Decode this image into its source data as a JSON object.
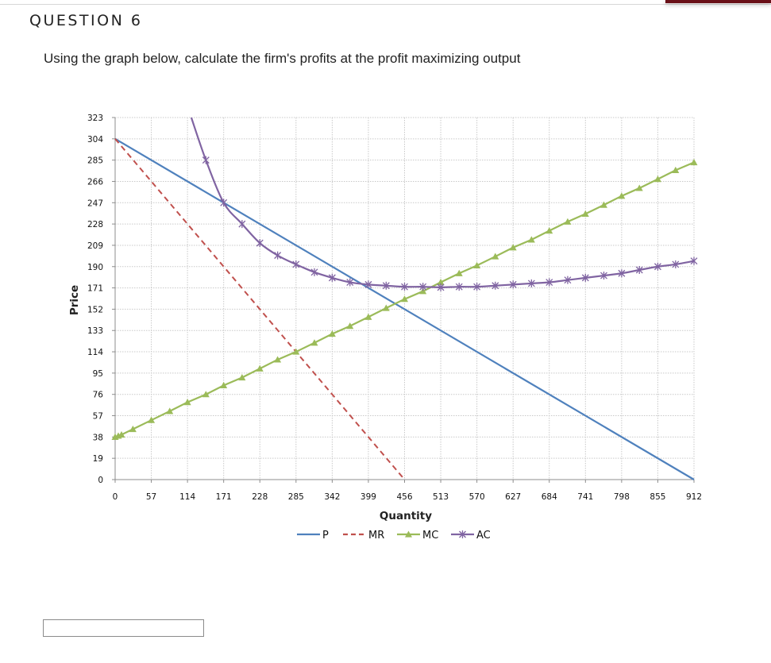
{
  "question": {
    "title": "QUESTION 6",
    "prompt": "Using the graph below, calculate the firm's profits at the profit maximizing output"
  },
  "answer": {
    "value": "",
    "placeholder": ""
  },
  "chart_data": {
    "type": "line",
    "title": "",
    "xlabel": "Quantity",
    "ylabel": "Price",
    "xlim": [
      0,
      912
    ],
    "ylim": [
      0,
      323
    ],
    "x_ticks": [
      "0",
      "57",
      "114",
      "171",
      "228",
      "285",
      "342",
      "399",
      "456",
      "513",
      "570",
      "627",
      "684",
      "741",
      "798",
      "855",
      "912"
    ],
    "y_ticks": [
      "0",
      "19",
      "38",
      "57",
      "76",
      "95",
      "114",
      "133",
      "152",
      "171",
      "190",
      "209",
      "228",
      "247",
      "266",
      "285",
      "304",
      "323"
    ],
    "grid": true,
    "legend_position": "bottom",
    "series": [
      {
        "name": "P",
        "color": "#4f81bd",
        "marker": "none",
        "dash": "solid",
        "points": [
          [
            0,
            304
          ],
          [
            912,
            0
          ]
        ]
      },
      {
        "name": "MR",
        "color": "#c0504d",
        "marker": "none",
        "dash": "dashed",
        "points": [
          [
            0,
            304
          ],
          [
            456,
            0
          ]
        ]
      },
      {
        "name": "MC",
        "color": "#9bbb59",
        "marker": "triangle",
        "dash": "solid",
        "points": [
          [
            0,
            38
          ],
          [
            5,
            39
          ],
          [
            10,
            40
          ],
          [
            28,
            45
          ],
          [
            57,
            53
          ],
          [
            86,
            61
          ],
          [
            114,
            69
          ],
          [
            143,
            76
          ],
          [
            171,
            84
          ],
          [
            200,
            91
          ],
          [
            228,
            99
          ],
          [
            256,
            107
          ],
          [
            285,
            114
          ],
          [
            314,
            122
          ],
          [
            342,
            130
          ],
          [
            370,
            137
          ],
          [
            399,
            145
          ],
          [
            427,
            153
          ],
          [
            456,
            161
          ],
          [
            485,
            168
          ],
          [
            513,
            176
          ],
          [
            542,
            184
          ],
          [
            570,
            191
          ],
          [
            599,
            199
          ],
          [
            627,
            207
          ],
          [
            656,
            214
          ],
          [
            684,
            222
          ],
          [
            713,
            230
          ],
          [
            741,
            237
          ],
          [
            770,
            245
          ],
          [
            798,
            253
          ],
          [
            826,
            260
          ],
          [
            855,
            268
          ],
          [
            883,
            276
          ],
          [
            912,
            283
          ]
        ]
      },
      {
        "name": "AC",
        "color": "#8064a2",
        "marker": "x",
        "dash": "solid",
        "points": [
          [
            120,
            323
          ],
          [
            143,
            285
          ],
          [
            171,
            247
          ],
          [
            200,
            228
          ],
          [
            228,
            211
          ],
          [
            256,
            200
          ],
          [
            285,
            192
          ],
          [
            314,
            185
          ],
          [
            342,
            180
          ],
          [
            370,
            176
          ],
          [
            399,
            174
          ],
          [
            427,
            173
          ],
          [
            456,
            172
          ],
          [
            485,
            172
          ],
          [
            513,
            171.5
          ],
          [
            542,
            172
          ],
          [
            570,
            172
          ],
          [
            599,
            173
          ],
          [
            627,
            174
          ],
          [
            656,
            175
          ],
          [
            684,
            176
          ],
          [
            713,
            178
          ],
          [
            741,
            180
          ],
          [
            770,
            182
          ],
          [
            798,
            184
          ],
          [
            826,
            187
          ],
          [
            855,
            190
          ],
          [
            883,
            192
          ],
          [
            912,
            195
          ]
        ]
      }
    ]
  }
}
